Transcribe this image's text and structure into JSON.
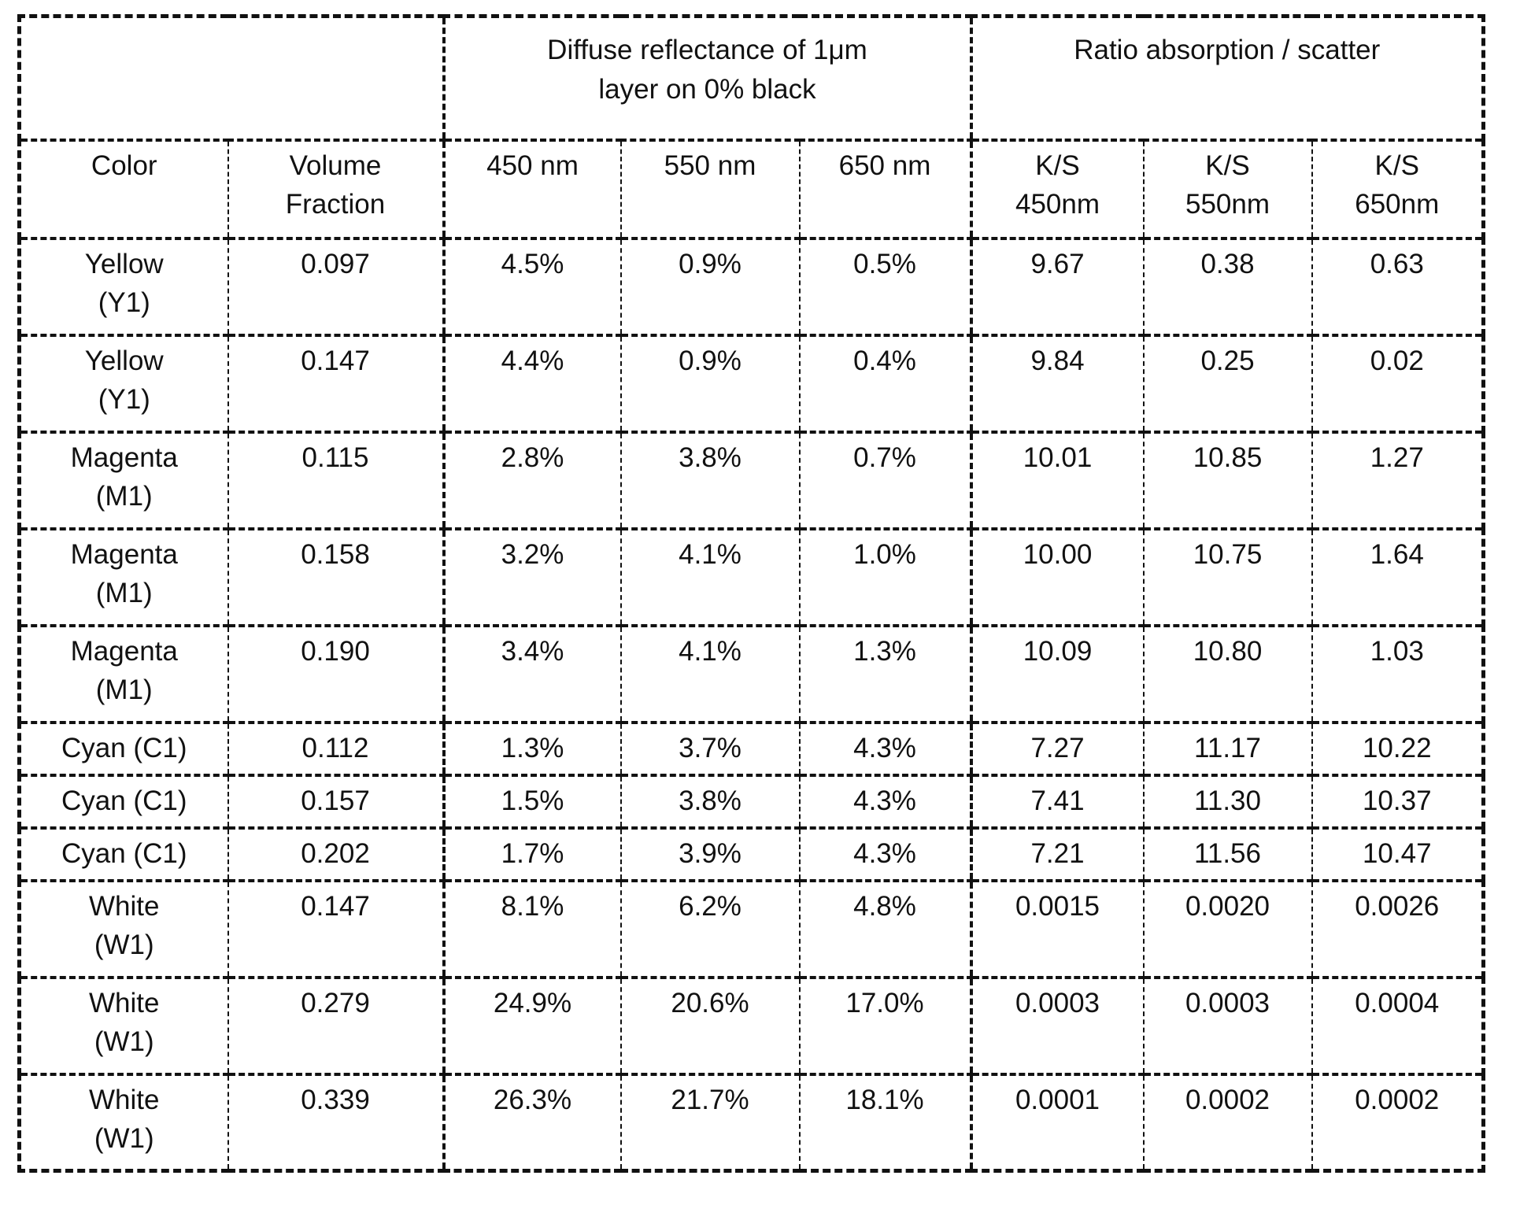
{
  "page": {
    "background_color": "#ffffff",
    "line_color": "#111111"
  },
  "table": {
    "group_headers": [
      {
        "label": "",
        "colspan": 2
      },
      {
        "label": "Diffuse reflectance of 1μm\nlayer on 0% black",
        "colspan": 3
      },
      {
        "label": "Ratio absorption / scatter",
        "colspan": 3
      }
    ],
    "column_headers": [
      "Color",
      "Volume\nFraction",
      "450 nm",
      "550 nm",
      "650 nm",
      "K/S\n450nm",
      "K/S\n550nm",
      "K/S\n650nm"
    ],
    "rows": [
      {
        "cells": [
          "Yellow\n(Y1)",
          "0.097",
          "4.5%",
          "0.9%",
          "0.5%",
          "9.67",
          "0.38",
          "0.63"
        ]
      },
      {
        "cells": [
          "Yellow\n(Y1)",
          "0.147",
          "4.4%",
          "0.9%",
          "0.4%",
          "9.84",
          "0.25",
          "0.02"
        ]
      },
      {
        "cells": [
          "Magenta\n(M1)",
          "0.115",
          "2.8%",
          "3.8%",
          "0.7%",
          "10.01",
          "10.85",
          "1.27"
        ]
      },
      {
        "cells": [
          "Magenta\n(M1)",
          "0.158",
          "3.2%",
          "4.1%",
          "1.0%",
          "10.00",
          "10.75",
          "1.64"
        ]
      },
      {
        "cells": [
          "Magenta\n(M1)",
          "0.190",
          "3.4%",
          "4.1%",
          "1.3%",
          "10.09",
          "10.80",
          "1.03"
        ]
      },
      {
        "cells": [
          "Cyan (C1)",
          "0.112",
          "1.3%",
          "3.7%",
          "4.3%",
          "7.27",
          "11.17",
          "10.22"
        ]
      },
      {
        "cells": [
          "Cyan (C1)",
          "0.157",
          "1.5%",
          "3.8%",
          "4.3%",
          "7.41",
          "11.30",
          "10.37"
        ]
      },
      {
        "cells": [
          "Cyan (C1)",
          "0.202",
          "1.7%",
          "3.9%",
          "4.3%",
          "7.21",
          "11.56",
          "10.47"
        ]
      },
      {
        "cells": [
          "White\n(W1)",
          "0.147",
          "8.1%",
          "6.2%",
          "4.8%",
          "0.0015",
          "0.0020",
          "0.0026"
        ]
      },
      {
        "cells": [
          "White\n(W1)",
          "0.279",
          "24.9%",
          "20.6%",
          "17.0%",
          "0.0003",
          "0.0003",
          "0.0004"
        ]
      },
      {
        "cells": [
          "White\n(W1)",
          "0.339",
          "26.3%",
          "21.7%",
          "18.1%",
          "0.0001",
          "0.0002",
          "0.0002"
        ]
      }
    ]
  }
}
